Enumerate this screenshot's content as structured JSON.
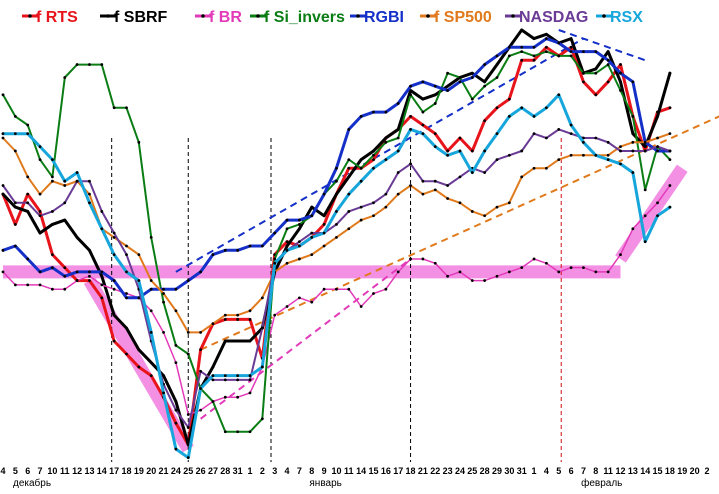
{
  "chart_data": {
    "type": "line",
    "title": "",
    "xlabel": "",
    "ylabel": "",
    "ylim": [
      0,
      100
    ],
    "grid": false,
    "legend_placement": "top",
    "x_tick_labels": [
      "4",
      "5",
      "6",
      "7",
      "10",
      "11",
      "12",
      "13",
      "14",
      "17",
      "18",
      "19",
      "20",
      "21",
      "24",
      "25",
      "26",
      "27",
      "28",
      "31",
      "1",
      "2",
      "3",
      "4",
      "7",
      "8",
      "9",
      "10",
      "11",
      "14",
      "15",
      "16",
      "17",
      "18",
      "21",
      "22",
      "23",
      "24",
      "25",
      "28",
      "29",
      "30",
      "31",
      "1",
      "4",
      "5",
      "6",
      "7",
      "8",
      "11",
      "12",
      "13",
      "14",
      "15",
      "18",
      "19",
      "20",
      "2"
    ],
    "month_labels": [
      {
        "text": "декабрь",
        "at_index": 0
      },
      {
        "text": "январь",
        "at_index": 24
      },
      {
        "text": "февраль",
        "at_index": 46
      }
    ],
    "vertical_markers": [
      {
        "at_index": 8.8,
        "style": "black-dashed"
      },
      {
        "at_index": 15,
        "style": "black-dashed"
      },
      {
        "at_index": 21.7,
        "style": "black-dashed"
      },
      {
        "at_index": 33,
        "style": "black-dashed"
      },
      {
        "at_index": 45.2,
        "style": "red-dashed"
      }
    ],
    "series": [
      {
        "name": "RTS",
        "legend": "f RTS",
        "color": "#e8141b",
        "width": 3,
        "start": 0,
        "values": [
          62,
          55,
          62,
          58,
          48,
          45,
          42,
          42,
          38,
          28,
          25,
          22,
          20,
          15,
          9,
          4,
          26,
          32,
          33,
          33,
          33,
          24,
          48,
          51,
          50,
          52,
          55,
          62,
          68,
          68,
          70,
          75,
          77,
          80,
          78,
          76,
          72,
          75,
          72,
          79,
          82,
          84,
          93,
          93,
          96,
          94,
          96,
          88,
          85,
          88,
          92,
          80,
          72,
          81,
          82
        ]
      },
      {
        "name": "SBRF",
        "legend": "f SBRF",
        "color": "#000000",
        "width": 3,
        "start": 0,
        "values": [
          62,
          59,
          58,
          53,
          55,
          56,
          52,
          49,
          43,
          34,
          31,
          26,
          23,
          20,
          14,
          4,
          17,
          22,
          28,
          28,
          28,
          31,
          44,
          50,
          54,
          59,
          57,
          62,
          66,
          70,
          72,
          75,
          77,
          86,
          84,
          85,
          87,
          89,
          90,
          88,
          92,
          96,
          100,
          98,
          99,
          97,
          98,
          90,
          91,
          95,
          88,
          76,
          73,
          80,
          90
        ]
      },
      {
        "name": "BR",
        "legend": "f BR",
        "color": "#e33ab9",
        "width": 1.5,
        "start": 0,
        "values": [
          44,
          41,
          41,
          41,
          40,
          40,
          42,
          43,
          41,
          40,
          39,
          38,
          35,
          30,
          23,
          11,
          12,
          14,
          15,
          15,
          16,
          22,
          34,
          36,
          38,
          37,
          40,
          40,
          40,
          36,
          39,
          40,
          44,
          47,
          47,
          46,
          43,
          44,
          42,
          42,
          43,
          44,
          45,
          47,
          46,
          44,
          45,
          45,
          44,
          44,
          48,
          54,
          57,
          60,
          64
        ]
      },
      {
        "name": "Si_invers",
        "legend": "f Si_invers",
        "color": "#0a7d14",
        "width": 2,
        "start": 0,
        "values": [
          85,
          80,
          78,
          70,
          66,
          89,
          92,
          92,
          92,
          82,
          82,
          74,
          52,
          37,
          27,
          25,
          17,
          14,
          7,
          7,
          7,
          10,
          47,
          54,
          55,
          57,
          62,
          65,
          70,
          68,
          71,
          74,
          75,
          85,
          81,
          83,
          90,
          89,
          84,
          87,
          89,
          94,
          95,
          94,
          95,
          94,
          94,
          90,
          90,
          92,
          86,
          80,
          63,
          73,
          70
        ]
      },
      {
        "name": "RGBI",
        "legend": "RGBI",
        "color": "#1530c8",
        "width": 3,
        "start": 0,
        "values": [
          49,
          50,
          47,
          44,
          45,
          43,
          44,
          44,
          44,
          42,
          38,
          38,
          40,
          40,
          40,
          42,
          44,
          48,
          49,
          49,
          50,
          50,
          53,
          56,
          56,
          57,
          62,
          68,
          77,
          80,
          81,
          81,
          83,
          87,
          88,
          87,
          86,
          88,
          89,
          92,
          94,
          96,
          96,
          96,
          98,
          97,
          95,
          95,
          95,
          93,
          90,
          88,
          74,
          72,
          72
        ]
      },
      {
        "name": "SP500",
        "legend": "f SP500",
        "color": "#e07a1c",
        "width": 2,
        "start": 0,
        "values": [
          75,
          72,
          66,
          62,
          65,
          64,
          65,
          62,
          54,
          52,
          50,
          48,
          42,
          39,
          35,
          30,
          30,
          32,
          34,
          34,
          35,
          38,
          44,
          46,
          47,
          48,
          50,
          52,
          54,
          56,
          57,
          59,
          62,
          64,
          62,
          63,
          61,
          60,
          58,
          57,
          59,
          60,
          66,
          68,
          68,
          70,
          71,
          71,
          71,
          71,
          73,
          74,
          74,
          75,
          76
        ]
      },
      {
        "name": "NASDAG",
        "legend": "NASDAG",
        "color": "#6a3b95",
        "width": 2,
        "start": 0,
        "values": [
          64,
          60,
          60,
          57,
          58,
          60,
          65,
          65,
          58,
          53,
          48,
          40,
          28,
          18,
          12,
          8,
          21,
          19,
          19,
          19,
          19,
          31,
          46,
          49,
          51,
          53,
          53,
          55,
          58,
          59,
          60,
          62,
          67,
          69,
          65,
          65,
          64,
          66,
          68,
          67,
          70,
          71,
          72,
          76,
          75,
          77,
          76,
          75,
          75,
          74,
          72,
          72,
          72,
          73,
          72
        ]
      },
      {
        "name": "RSX",
        "legend": "RSX",
        "color": "#17a6dc",
        "width": 3,
        "start": 0,
        "values": [
          76,
          76,
          76,
          73,
          70,
          65,
          67,
          60,
          54,
          48,
          44,
          42,
          30,
          16,
          3,
          1,
          17,
          20,
          20,
          20,
          20,
          22,
          46,
          49,
          50,
          52,
          53,
          58,
          62,
          65,
          68,
          70,
          72,
          77,
          76,
          73,
          71,
          72,
          67,
          72,
          76,
          80,
          82,
          80,
          82,
          85,
          78,
          74,
          71,
          70,
          69,
          67,
          51,
          57,
          59
        ]
      }
    ],
    "trend_lines": [
      {
        "name": "RGBI-trend",
        "color": "#1530c8",
        "style": "dashed",
        "from": [
          14,
          44
        ],
        "to": [
          47,
          98
        ]
      },
      {
        "name": "RGBI-top-trend",
        "color": "#1530c8",
        "style": "dashed",
        "from": [
          45,
          100
        ],
        "to": [
          52,
          93
        ]
      },
      {
        "name": "SP500-trend",
        "color": "#e07a1c",
        "style": "dashed",
        "from": [
          16,
          26
        ],
        "to": [
          58,
          80
        ]
      },
      {
        "name": "BR-trend",
        "color": "#e33ab9",
        "style": "dashed",
        "from": [
          16,
          10
        ],
        "to": [
          33,
          47
        ]
      }
    ],
    "highlights": [
      {
        "name": "support-band",
        "color": "#f27de0",
        "from": [
          0,
          44
        ],
        "to": [
          50,
          44
        ]
      },
      {
        "name": "decline-band",
        "color": "#f27de0",
        "from": [
          7,
          42
        ],
        "to": [
          15,
          3
        ]
      },
      {
        "name": "rise-band",
        "color": "#f27de0",
        "from": [
          50,
          47
        ],
        "to": [
          55,
          68
        ]
      }
    ]
  }
}
